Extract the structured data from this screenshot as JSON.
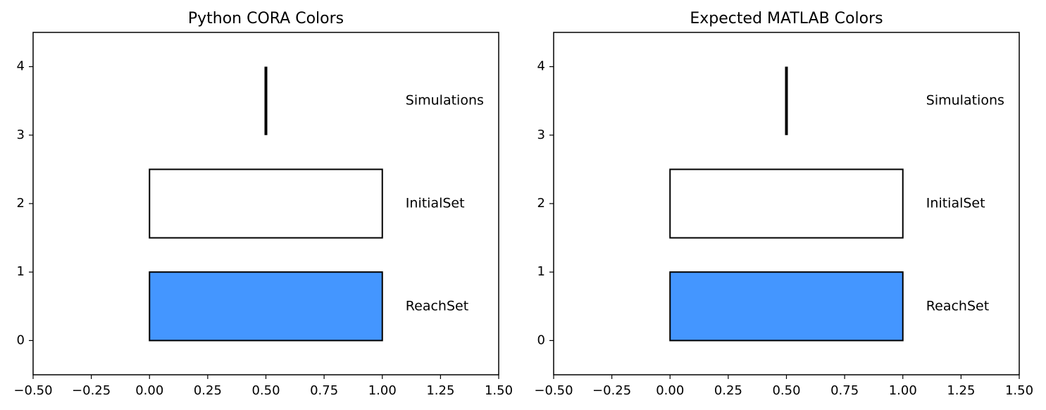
{
  "chart_data": [
    {
      "type": "bar",
      "title": "Python CORA Colors",
      "xlim": [
        -0.5,
        1.5
      ],
      "ylim": [
        -0.5,
        4.5
      ],
      "xticks": [
        "−0.50",
        "−0.25",
        "0.00",
        "0.25",
        "0.50",
        "0.75",
        "1.00",
        "1.25",
        "1.50"
      ],
      "xtick_values": [
        -0.5,
        -0.25,
        0.0,
        0.25,
        0.5,
        0.75,
        1.0,
        1.25,
        1.5
      ],
      "yticks": [
        "0",
        "1",
        "2",
        "3",
        "4"
      ],
      "ytick_values": [
        0,
        1,
        2,
        3,
        4
      ],
      "grid": false,
      "rects": [
        {
          "x0": 0,
          "x1": 1,
          "y0": 0,
          "y1": 1,
          "fill": "#4496ff",
          "edge": "#000000"
        },
        {
          "x0": 0,
          "x1": 1,
          "y0": 1.5,
          "y1": 2.5,
          "fill": "#ffffff",
          "edge": "#000000"
        }
      ],
      "lines": [
        {
          "x": [
            0.5,
            0.5
          ],
          "y": [
            3,
            4
          ],
          "color": "#000000"
        }
      ],
      "annotations": [
        {
          "x": 1.1,
          "y": 0.5,
          "text": "ReachSet"
        },
        {
          "x": 1.1,
          "y": 2.0,
          "text": "InitialSet"
        },
        {
          "x": 1.1,
          "y": 3.5,
          "text": "Simulations"
        }
      ]
    },
    {
      "type": "bar",
      "title": "Expected MATLAB Colors",
      "xlim": [
        -0.5,
        1.5
      ],
      "ylim": [
        -0.5,
        4.5
      ],
      "xticks": [
        "−0.50",
        "−0.25",
        "0.00",
        "0.25",
        "0.50",
        "0.75",
        "1.00",
        "1.25",
        "1.50"
      ],
      "xtick_values": [
        -0.5,
        -0.25,
        0.0,
        0.25,
        0.5,
        0.75,
        1.0,
        1.25,
        1.5
      ],
      "yticks": [
        "0",
        "1",
        "2",
        "3",
        "4"
      ],
      "ytick_values": [
        0,
        1,
        2,
        3,
        4
      ],
      "grid": false,
      "rects": [
        {
          "x0": 0,
          "x1": 1,
          "y0": 0,
          "y1": 1,
          "fill": "#4496ff",
          "edge": "#000000"
        },
        {
          "x0": 0,
          "x1": 1,
          "y0": 1.5,
          "y1": 2.5,
          "fill": "#ffffff",
          "edge": "#000000"
        }
      ],
      "lines": [
        {
          "x": [
            0.5,
            0.5
          ],
          "y": [
            3,
            4
          ],
          "color": "#000000"
        }
      ],
      "annotations": [
        {
          "x": 1.1,
          "y": 0.5,
          "text": "ReachSet"
        },
        {
          "x": 1.1,
          "y": 2.0,
          "text": "InitialSet"
        },
        {
          "x": 1.1,
          "y": 3.5,
          "text": "Simulations"
        }
      ]
    }
  ]
}
